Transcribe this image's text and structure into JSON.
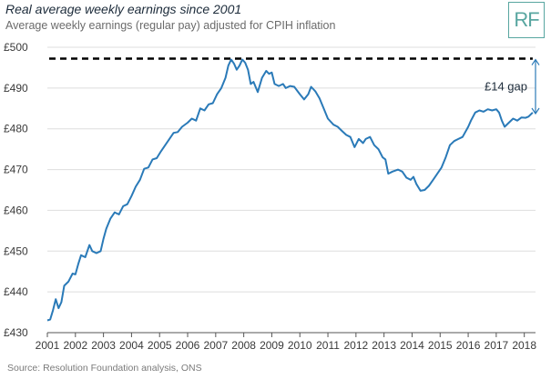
{
  "header": {
    "title": "Real average weekly earnings since 2001",
    "subtitle": "Average weekly earnings (regular pay) adjusted for CPIH inflation",
    "logo_text": "RF"
  },
  "footer": {
    "source": "Source: Resolution Foundation analysis, ONS"
  },
  "chart_data": {
    "type": "line",
    "title": "Real average weekly earnings since 2001",
    "subtitle": "Average weekly earnings (regular pay) adjusted for CPIH inflation",
    "xlabel": "",
    "ylabel": "",
    "xlim": [
      2001,
      2018.4
    ],
    "ylim": [
      430,
      500
    ],
    "y_ticks": [
      430,
      440,
      450,
      460,
      470,
      480,
      490,
      500
    ],
    "y_tick_labels": [
      "£430",
      "£440",
      "£450",
      "£460",
      "£470",
      "£480",
      "£490",
      "£500"
    ],
    "x_ticks": [
      2001,
      2002,
      2003,
      2004,
      2005,
      2006,
      2007,
      2008,
      2009,
      2010,
      2011,
      2012,
      2013,
      2014,
      2015,
      2016,
      2017,
      2018
    ],
    "x_tick_labels": [
      "2001",
      "2002",
      "2003",
      "2004",
      "2005",
      "2006",
      "2007",
      "2008",
      "2009",
      "2010",
      "2011",
      "2012",
      "2013",
      "2014",
      "2015",
      "2016",
      "2017",
      "2018"
    ],
    "grid": "horizontal",
    "line_color": "#2a7ab8",
    "reference_line": {
      "value": 497.2,
      "style": "dashed",
      "color": "#000000"
    },
    "annotation": {
      "text": "£14 gap",
      "from": 497.2,
      "to": 483.5,
      "x": 2018.4
    },
    "series": [
      {
        "x": [
          2001.0,
          2001.1,
          2001.2,
          2001.3,
          2001.4,
          2001.5,
          2001.6,
          2001.75,
          2001.9,
          2002.0,
          2002.1,
          2002.2,
          2002.35,
          2002.5,
          2002.6,
          2002.75,
          2002.9,
          2003.0,
          2003.1,
          2003.25,
          2003.4,
          2003.55,
          2003.7,
          2003.85,
          2004.0,
          2004.15,
          2004.3,
          2004.45,
          2004.6,
          2004.75,
          2004.9,
          2005.05,
          2005.2,
          2005.35,
          2005.5,
          2005.65,
          2005.8,
          2006.0,
          2006.15,
          2006.3,
          2006.45,
          2006.6,
          2006.75,
          2006.9,
          2007.05,
          2007.2,
          2007.35,
          2007.45,
          2007.55,
          2007.65,
          2007.75,
          2007.85,
          2007.95,
          2008.05,
          2008.15,
          2008.25,
          2008.35,
          2008.5,
          2008.65,
          2008.8,
          2008.9,
          2009.0,
          2009.1,
          2009.25,
          2009.4,
          2009.5,
          2009.65,
          2009.8,
          2010.0,
          2010.15,
          2010.3,
          2010.4,
          2010.55,
          2010.7,
          2010.85,
          2011.0,
          2011.2,
          2011.35,
          2011.5,
          2011.65,
          2011.8,
          2011.95,
          2012.1,
          2012.25,
          2012.35,
          2012.5,
          2012.65,
          2012.8,
          2012.95,
          2013.05,
          2013.15,
          2013.3,
          2013.5,
          2013.65,
          2013.8,
          2013.95,
          2014.05,
          2014.15,
          2014.3,
          2014.45,
          2014.6,
          2014.75,
          2014.9,
          2015.05,
          2015.2,
          2015.35,
          2015.5,
          2015.65,
          2015.8,
          2016.0,
          2016.1,
          2016.25,
          2016.4,
          2016.55,
          2016.7,
          2016.85,
          2017.0,
          2017.1,
          2017.2,
          2017.3,
          2017.45,
          2017.6,
          2017.75,
          2017.9,
          2018.05,
          2018.15,
          2018.3
        ],
        "values": [
          433.0,
          433.2,
          435.5,
          438.2,
          436.0,
          437.5,
          441.5,
          442.5,
          444.5,
          444.3,
          446.8,
          449.0,
          448.5,
          451.5,
          450.0,
          449.5,
          450.0,
          453.0,
          455.5,
          458.0,
          459.5,
          459.0,
          461.0,
          461.5,
          463.5,
          465.8,
          467.5,
          470.2,
          470.5,
          472.5,
          472.8,
          474.5,
          476.0,
          477.5,
          479.0,
          479.2,
          480.5,
          481.5,
          482.5,
          482.0,
          485.0,
          484.5,
          486.0,
          486.3,
          488.5,
          490.0,
          492.5,
          495.5,
          497.0,
          496.0,
          494.5,
          495.5,
          497.0,
          496.2,
          494.5,
          491.0,
          491.5,
          489.0,
          492.5,
          494.2,
          493.5,
          493.8,
          491.0,
          490.5,
          491.0,
          490.0,
          490.5,
          490.3,
          488.5,
          487.2,
          488.5,
          490.3,
          489.2,
          487.5,
          485.0,
          482.5,
          481.0,
          480.5,
          479.5,
          478.5,
          478.0,
          475.5,
          477.5,
          476.5,
          477.5,
          478.0,
          476.0,
          475.0,
          473.0,
          472.5,
          469.0,
          469.5,
          470.0,
          469.5,
          468.0,
          467.5,
          468.2,
          466.5,
          464.8,
          465.0,
          466.0,
          467.5,
          469.0,
          470.5,
          473.0,
          476.0,
          477.0,
          477.5,
          478.0,
          480.5,
          482.0,
          484.0,
          484.5,
          484.2,
          484.8,
          484.5,
          484.8,
          484.0,
          482.0,
          480.5,
          481.5,
          482.5,
          482.0,
          482.8,
          482.7,
          483.0,
          484.0
        ]
      }
    ]
  }
}
